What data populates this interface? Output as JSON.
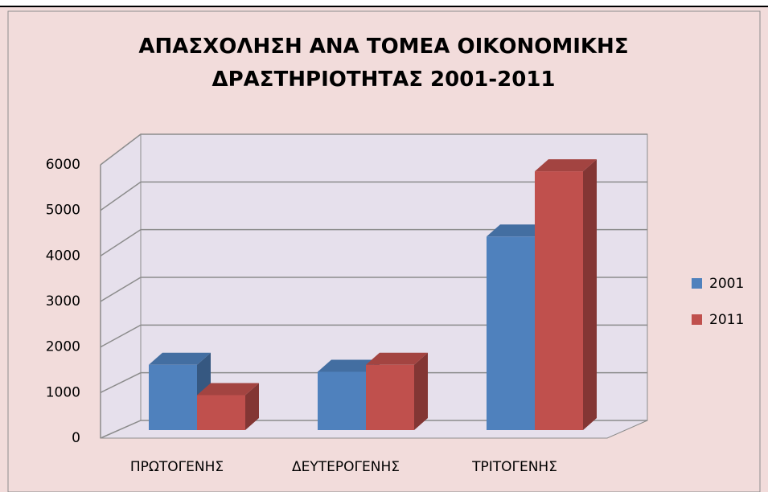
{
  "chart_data": {
    "type": "bar3d",
    "title": "ΑΠΑΣΧΟΛΗΣΗ ΑΝΑ ΤΟΜΕΑ ΟΙΚΟΝΟΜΙΚΗΣ ΔΡΑΣΤΗΡΙΟΤΗΤΑΣ 2001-2011",
    "categories": [
      "ΠΡΩΤΟΓΕΝΗΣ",
      "ΔΕΥΤΕΡΟΓΕΝΗΣ",
      "ΤΡΙΤΟΓΕΝΗΣ"
    ],
    "series": [
      {
        "name": "2001",
        "color": "#4f81bd",
        "values": [
          1400,
          1250,
          4150
        ]
      },
      {
        "name": "2011",
        "color": "#c0504d",
        "values": [
          750,
          1400,
          5550
        ]
      }
    ],
    "ylim": [
      0,
      6000
    ],
    "yticks": [
      0,
      1000,
      2000,
      3000,
      4000,
      5000,
      6000
    ],
    "grid": true,
    "legend": "right"
  }
}
